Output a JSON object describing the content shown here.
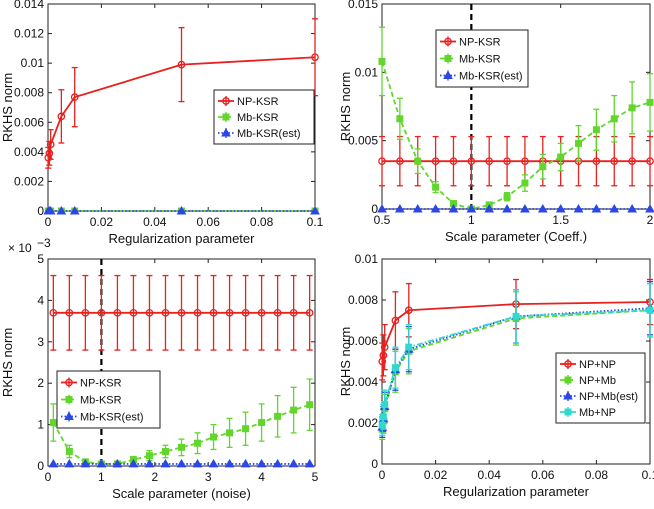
{
  "chart_data": [
    {
      "type": "line",
      "panel": "top-left",
      "xlabel": "Regularization parameter",
      "ylabel": "RKHS norm",
      "xlim": [
        0,
        0.1
      ],
      "ylim": [
        0,
        0.014
      ],
      "xticks": [
        0,
        0.02,
        0.04,
        0.06,
        0.08,
        0.1
      ],
      "xtick_labels": [
        "0",
        "0.02",
        "0.04",
        "0.06",
        "0.08",
        "0.1"
      ],
      "yticks": [
        0,
        0.002,
        0.004,
        0.006,
        0.008,
        0.01,
        0.012,
        0.014
      ],
      "ytick_labels": [
        "0",
        "0.002",
        "0.004",
        "0.006",
        "0.008",
        "0.01",
        "0.012",
        "0.014"
      ],
      "legend_position": "middle-right",
      "series": [
        {
          "name": "NP-KSR",
          "color": "#e8201e",
          "style": "solid",
          "marker": "circle",
          "x": [
            0.0001,
            0.0005,
            0.001,
            0.005,
            0.01,
            0.05,
            0.1
          ],
          "values": [
            0.0036,
            0.0039,
            0.0045,
            0.0064,
            0.0077,
            0.0099,
            0.0104
          ],
          "errors": [
            0.0007,
            0.0008,
            0.001,
            0.0018,
            0.002,
            0.0025,
            0.0026
          ]
        },
        {
          "name": "Mb-KSR",
          "color": "#62d62c",
          "style": "dashed",
          "marker": "square",
          "x": [
            0.0001,
            0.0005,
            0.001,
            0.005,
            0.01,
            0.05,
            0.1
          ],
          "values": [
            0,
            0,
            0,
            0,
            0,
            0,
            0
          ],
          "errors": [
            0,
            0,
            0,
            0,
            0,
            0,
            0
          ]
        },
        {
          "name": "Mb-KSR(est)",
          "color": "#2b47e6",
          "style": "dotted",
          "marker": "triangle",
          "x": [
            0.0001,
            0.0005,
            0.001,
            0.005,
            0.01,
            0.05,
            0.1
          ],
          "values": [
            0,
            0,
            0,
            0,
            0,
            0,
            0
          ],
          "errors": [
            0,
            0,
            0,
            0,
            0,
            0,
            0
          ]
        }
      ]
    },
    {
      "type": "line",
      "panel": "top-right",
      "xlabel": "Scale parameter (Coeff.)",
      "ylabel": "RKHS norm",
      "xlim": [
        0.5,
        2
      ],
      "ylim": [
        0,
        0.015
      ],
      "xticks": [
        0.5,
        1,
        1.5,
        2
      ],
      "xtick_labels": [
        "0.5",
        "1",
        "1.5",
        "2"
      ],
      "yticks": [
        0,
        0.005,
        0.01,
        0.015
      ],
      "ytick_labels": [
        "0",
        "0.005",
        "0.01",
        "0.015"
      ],
      "vline_x": 1,
      "legend_position": "top-left",
      "series": [
        {
          "name": "NP-KSR",
          "color": "#e8201e",
          "style": "solid",
          "marker": "circle",
          "x": [
            0.5,
            0.6,
            0.7,
            0.8,
            0.9,
            1.0,
            1.1,
            1.2,
            1.3,
            1.4,
            1.5,
            1.6,
            1.7,
            1.8,
            1.9,
            2.0
          ],
          "values": [
            0.0035,
            0.0035,
            0.0035,
            0.0035,
            0.0035,
            0.0035,
            0.0035,
            0.0035,
            0.0035,
            0.0035,
            0.0035,
            0.0035,
            0.0035,
            0.0035,
            0.0035,
            0.0035
          ],
          "errors": [
            0.0018,
            0.0018,
            0.0018,
            0.0018,
            0.0018,
            0.0018,
            0.0018,
            0.0018,
            0.0018,
            0.0018,
            0.0018,
            0.0018,
            0.0018,
            0.0018,
            0.0018,
            0.0018
          ]
        },
        {
          "name": "Mb-KSR",
          "color": "#62d62c",
          "style": "dashed",
          "marker": "square",
          "x": [
            0.5,
            0.6,
            0.7,
            0.8,
            0.9,
            1.0,
            1.1,
            1.2,
            1.3,
            1.4,
            1.5,
            1.6,
            1.7,
            1.8,
            1.9,
            2.0
          ],
          "values": [
            0.0108,
            0.0066,
            0.0035,
            0.0016,
            0.0004,
            0.0,
            0.0003,
            0.0009,
            0.0019,
            0.0031,
            0.0038,
            0.0048,
            0.0058,
            0.0066,
            0.0074,
            0.0078
          ],
          "errors": [
            0.0025,
            0.0015,
            0.0009,
            0.0004,
            0.0001,
            0.0,
            0.0001,
            0.0003,
            0.0006,
            0.0009,
            0.001,
            0.0013,
            0.0015,
            0.0017,
            0.0019,
            0.0021
          ]
        },
        {
          "name": "Mb-KSR(est)",
          "color": "#2b47e6",
          "style": "dotted",
          "marker": "triangle",
          "x": [
            0.5,
            0.6,
            0.7,
            0.8,
            0.9,
            1.0,
            1.1,
            1.2,
            1.3,
            1.4,
            1.5,
            1.6,
            1.7,
            1.8,
            1.9,
            2.0
          ],
          "values": [
            0,
            0,
            0,
            0,
            0,
            0,
            0,
            0,
            0,
            0,
            0,
            0,
            0,
            0,
            0,
            0
          ],
          "errors": [
            0,
            0,
            0,
            0,
            0,
            0,
            0,
            0,
            0,
            0,
            0,
            0,
            0,
            0,
            0,
            0
          ]
        }
      ]
    },
    {
      "type": "line",
      "panel": "bottom-left",
      "xlabel": "Scale parameter (noise)",
      "ylabel": "RKHS norm",
      "multiplier_label": "× 10",
      "multiplier_exp": "−3",
      "xlim": [
        0,
        5
      ],
      "ylim": [
        0,
        5
      ],
      "xticks": [
        0,
        1,
        2,
        3,
        4,
        5
      ],
      "xtick_labels": [
        "0",
        "1",
        "2",
        "3",
        "4",
        "5"
      ],
      "yticks": [
        0,
        1,
        2,
        3,
        4,
        5
      ],
      "ytick_labels": [
        "0",
        "1",
        "2",
        "3",
        "4",
        "5"
      ],
      "vline_x": 1,
      "legend_position": "middle-left",
      "series": [
        {
          "name": "NP-KSR",
          "color": "#e8201e",
          "style": "solid",
          "marker": "circle",
          "x": [
            0.1,
            0.4,
            0.7,
            1.0,
            1.3,
            1.6,
            1.9,
            2.2,
            2.5,
            2.8,
            3.1,
            3.4,
            3.7,
            4.0,
            4.3,
            4.6,
            4.9
          ],
          "values": [
            3.7,
            3.7,
            3.7,
            3.7,
            3.7,
            3.7,
            3.7,
            3.7,
            3.7,
            3.7,
            3.7,
            3.7,
            3.7,
            3.7,
            3.7,
            3.7,
            3.7
          ],
          "errors": [
            0.9,
            0.9,
            0.9,
            0.9,
            0.9,
            0.9,
            0.9,
            0.9,
            0.9,
            0.9,
            0.9,
            0.9,
            0.9,
            0.9,
            0.9,
            0.9,
            0.9
          ]
        },
        {
          "name": "Mb-KSR",
          "color": "#62d62c",
          "style": "dashed",
          "marker": "square",
          "x": [
            0.1,
            0.4,
            0.7,
            1.0,
            1.3,
            1.6,
            1.9,
            2.2,
            2.5,
            2.8,
            3.1,
            3.4,
            3.7,
            4.0,
            4.3,
            4.6,
            4.9
          ],
          "values": [
            1.05,
            0.35,
            0.1,
            0.05,
            0.05,
            0.15,
            0.25,
            0.35,
            0.45,
            0.55,
            0.7,
            0.8,
            0.9,
            1.05,
            1.2,
            1.35,
            1.48
          ],
          "errors": [
            0.45,
            0.15,
            0.05,
            0.02,
            0.03,
            0.08,
            0.12,
            0.15,
            0.2,
            0.25,
            0.3,
            0.35,
            0.4,
            0.45,
            0.5,
            0.55,
            0.62
          ]
        },
        {
          "name": "Mb-KSR(est)",
          "color": "#2b47e6",
          "style": "dotted",
          "marker": "triangle",
          "x": [
            0.1,
            0.4,
            0.7,
            1.0,
            1.3,
            1.6,
            1.9,
            2.2,
            2.5,
            2.8,
            3.1,
            3.4,
            3.7,
            4.0,
            4.3,
            4.6,
            4.9
          ],
          "values": [
            0.05,
            0.05,
            0.05,
            0.05,
            0.05,
            0.05,
            0.05,
            0.05,
            0.05,
            0.05,
            0.05,
            0.05,
            0.05,
            0.05,
            0.05,
            0.05,
            0.05
          ],
          "errors": [
            0,
            0,
            0,
            0,
            0,
            0,
            0,
            0,
            0,
            0,
            0,
            0,
            0,
            0,
            0,
            0,
            0
          ]
        }
      ]
    },
    {
      "type": "line",
      "panel": "bottom-right",
      "xlabel": "Regularization parameter",
      "ylabel": "RKHS norm",
      "xlim": [
        0,
        0.1
      ],
      "ylim": [
        0,
        0.01
      ],
      "xticks": [
        0,
        0.02,
        0.04,
        0.06,
        0.08,
        0.1
      ],
      "xtick_labels": [
        "0",
        "0.02",
        "0.04",
        "0.06",
        "0.08",
        "0.1"
      ],
      "yticks": [
        0,
        0.002,
        0.004,
        0.006,
        0.008,
        0.01
      ],
      "ytick_labels": [
        "0",
        "0.002",
        "0.004",
        "0.006",
        "0.008",
        "0.01"
      ],
      "legend_position": "middle-right",
      "series": [
        {
          "name": "NP+NP",
          "color": "#e8201e",
          "style": "solid",
          "marker": "circle",
          "x": [
            0.0001,
            0.0005,
            0.001,
            0.005,
            0.01,
            0.05,
            0.1
          ],
          "values": [
            0.005,
            0.0053,
            0.0057,
            0.007,
            0.0075,
            0.0078,
            0.0079
          ],
          "errors": [
            0.0009,
            0.001,
            0.0011,
            0.0014,
            0.0013,
            0.0012,
            0.0011
          ]
        },
        {
          "name": "NP+Mb",
          "color": "#62d62c",
          "style": "dashed",
          "marker": "square",
          "x": [
            0.0001,
            0.0005,
            0.001,
            0.005,
            0.01,
            0.05,
            0.1
          ],
          "values": [
            0.0017,
            0.0021,
            0.0027,
            0.0045,
            0.0055,
            0.0071,
            0.0075
          ],
          "errors": [
            0.0005,
            0.0006,
            0.0007,
            0.001,
            0.0011,
            0.0013,
            0.0013
          ]
        },
        {
          "name": "NP+Mb(est)",
          "color": "#2b47e6",
          "style": "dotted",
          "marker": "triangle",
          "x": [
            0.0001,
            0.0005,
            0.001,
            0.005,
            0.01,
            0.05,
            0.1
          ],
          "values": [
            0.0018,
            0.0022,
            0.0028,
            0.0046,
            0.0056,
            0.0072,
            0.0076
          ],
          "errors": [
            0.0005,
            0.0006,
            0.0007,
            0.001,
            0.0011,
            0.0013,
            0.0013
          ]
        },
        {
          "name": "Mb+NP",
          "color": "#30d8d0",
          "style": "dashdot",
          "marker": "square",
          "x": [
            0.0001,
            0.0005,
            0.001,
            0.005,
            0.01,
            0.05,
            0.1
          ],
          "values": [
            0.0019,
            0.0023,
            0.0029,
            0.0047,
            0.0057,
            0.0072,
            0.0075
          ],
          "errors": [
            0.0005,
            0.0006,
            0.0007,
            0.001,
            0.0011,
            0.0013,
            0.0013
          ]
        }
      ]
    }
  ]
}
